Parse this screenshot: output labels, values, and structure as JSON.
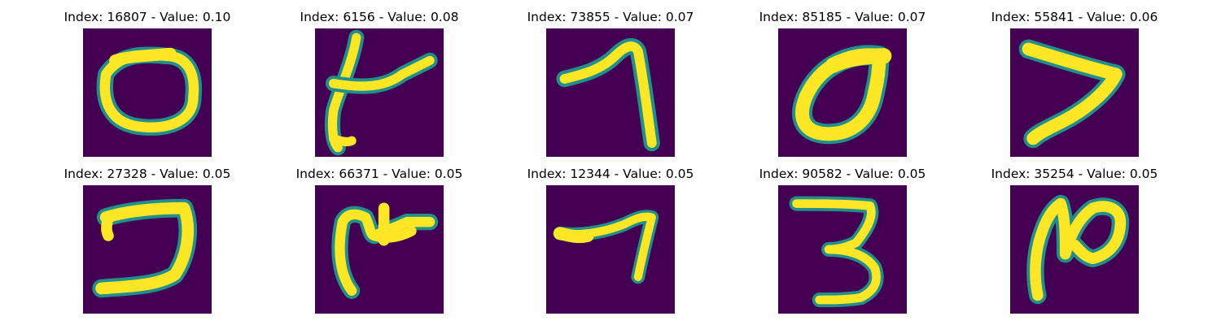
{
  "colors": {
    "background": "#440154",
    "mid": "#21908c",
    "stroke": "#fde725"
  },
  "panels": [
    {
      "title": "Index: 16807 - Value: 0.10",
      "glyph": "zero-oval-icon"
    },
    {
      "title": "Index: 6156 - Value: 0.08",
      "glyph": "digit-4-like-icon"
    },
    {
      "title": "Index: 73855 - Value: 0.07",
      "glyph": "digit-7-icon"
    },
    {
      "title": "Index: 85185 - Value: 0.07",
      "glyph": "zero-tilted-icon"
    },
    {
      "title": "Index: 55841 - Value: 0.06",
      "glyph": "digit-7-open-icon"
    },
    {
      "title": "Index: 27328 - Value: 0.05",
      "glyph": "hook-shape-icon"
    },
    {
      "title": "Index: 66371 - Value: 0.05",
      "glyph": "arch-cross-icon"
    },
    {
      "title": "Index: 12344 - Value: 0.05",
      "glyph": "digit-7-thin-icon"
    },
    {
      "title": "Index: 90582 - Value: 0.05",
      "glyph": "digit-3-icon"
    },
    {
      "title": "Index: 35254 - Value: 0.05",
      "glyph": "loop-shape-icon"
    }
  ]
}
